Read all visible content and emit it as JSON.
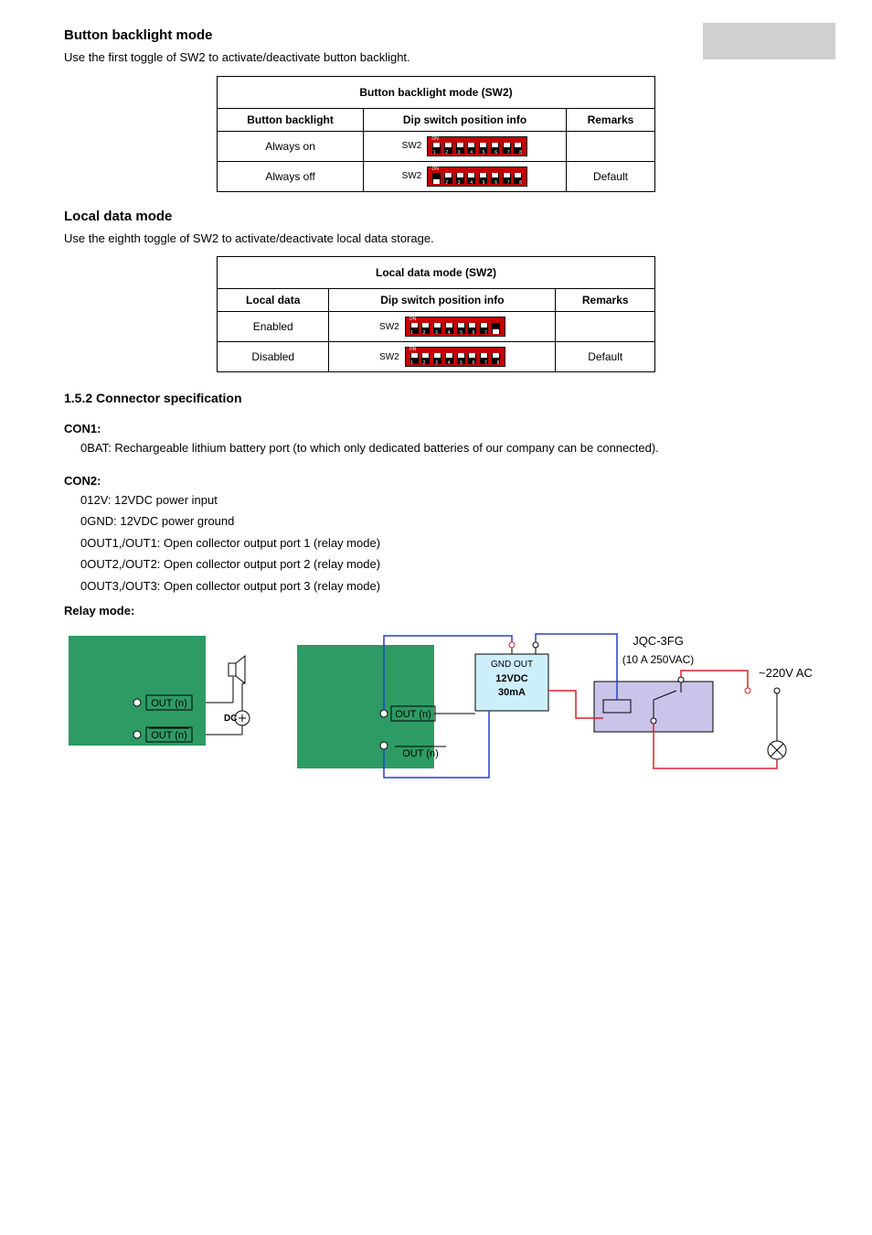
{
  "section": {
    "title": "Button backlight mode",
    "para": "Use the first toggle of SW2 to activate/deactivate button backlight."
  },
  "table1": {
    "header": "Button backlight mode (SW2)",
    "col1": "Button backlight",
    "col2": "Dip switch position info",
    "col3": "Remarks",
    "rows": [
      {
        "c1": "Always on",
        "c3": ""
      },
      {
        "c1": "Always off",
        "c3": "Default"
      }
    ],
    "dip1": [
      1,
      1,
      1,
      1,
      1,
      1,
      1,
      1
    ],
    "dip2": [
      0,
      1,
      1,
      1,
      1,
      1,
      1,
      1
    ]
  },
  "section2": {
    "title": "Local data mode",
    "para": "Use the eighth toggle of SW2 to activate/deactivate local data storage."
  },
  "table2": {
    "header": "Local data mode (SW2)",
    "col1": "Local data",
    "col2": "Dip switch position info",
    "col3": "Remarks",
    "rows": [
      {
        "c1": "Enabled",
        "c3": ""
      },
      {
        "c1": "Disabled",
        "c3": "Default"
      }
    ],
    "dip1": [
      1,
      1,
      1,
      1,
      1,
      1,
      1,
      0
    ],
    "dip2": [
      1,
      1,
      1,
      1,
      1,
      1,
      1,
      1
    ]
  },
  "sub": {
    "heading": "1.5.2 Connector specification",
    "con1": {
      "label": "CON1:",
      "l1": "0BAT: Rechargeable lithium battery port (to which only dedicated batteries of our company can be connected)."
    },
    "con2": {
      "label": "CON2:",
      "l1": "012V: 12VDC power input",
      "l2": "0GND: 12VDC power ground",
      "l3": "0OUT1,/OUT1: Open collector output port 1 (relay mode)",
      "l4": "0OUT2,/OUT2: Open collector output port 2 (relay mode)",
      "l5": "0OUT3,/OUT3: Open collector output port 3 (relay mode)",
      "mode": "Relay mode:"
    }
  },
  "diagram": {
    "board_color": "#2d9b63",
    "out_n": "OUT (n)",
    "out_n_bar": "OUT (n)",
    "dc_label": "DC",
    "relay_box": {
      "line1": "GND  OUT",
      "line2": "12VDC",
      "line3": "30mA",
      "fill": "#cdeffb"
    },
    "relay2_fill": "#c9c4ea",
    "jqc": "JQC-3FG",
    "jqc_sub": "(10 A 250VAC)",
    "ac_label": "~220V  AC",
    "wire_red": "#d6232a",
    "wire_blue": "#2a3fd1",
    "wire_black": "#000000"
  }
}
